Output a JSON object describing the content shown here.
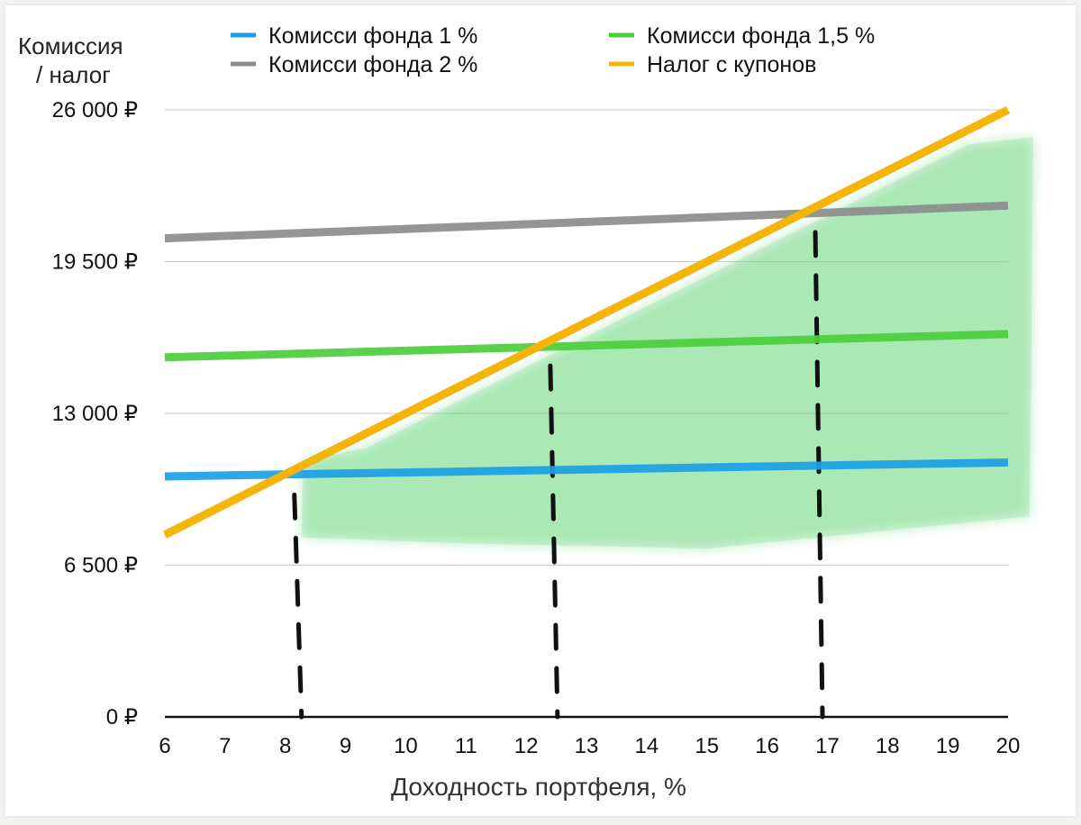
{
  "chart_data": {
    "type": "line",
    "ylabel_line1": "Комиссия",
    "ylabel_line2": "/ налог",
    "xlabel": "Доходность портфеля, %",
    "xlim": [
      6,
      20
    ],
    "ylim": [
      0,
      26000
    ],
    "x_ticks": [
      6,
      7,
      8,
      9,
      10,
      11,
      12,
      13,
      14,
      15,
      16,
      17,
      18,
      19,
      20
    ],
    "y_ticks": [
      {
        "value": 0,
        "label": "0 ₽"
      },
      {
        "value": 6500,
        "label": "6 500 ₽"
      },
      {
        "value": 13000,
        "label": "13 000 ₽"
      },
      {
        "value": 19500,
        "label": "19 500 ₽"
      },
      {
        "value": 26000,
        "label": "26 000 ₽"
      }
    ],
    "series": [
      {
        "name": "Комисси фонда 1 %",
        "color": "#1a9fe6",
        "x": [
          6,
          20
        ],
        "y": [
          10300,
          10900
        ]
      },
      {
        "name": "Комисси фонда 1,5 %",
        "color": "#4ccd3c",
        "x": [
          6,
          20
        ],
        "y": [
          15400,
          16400
        ]
      },
      {
        "name": "Комисси фонда 2 %",
        "color": "#8c8c8c",
        "x": [
          6,
          20
        ],
        "y": [
          20500,
          21900
        ]
      },
      {
        "name": "Налог с купонов",
        "color": "#f5b40a",
        "x": [
          6,
          20
        ],
        "y": [
          7800,
          26000
        ]
      }
    ],
    "breakeven_x": [
      8.15,
      12.4,
      16.8
    ],
    "highlight_color": "#7fdc8f"
  }
}
